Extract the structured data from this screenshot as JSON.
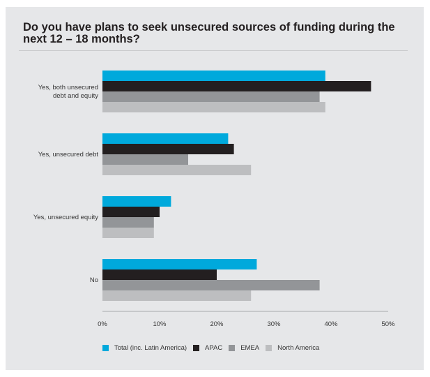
{
  "chart_data": {
    "type": "bar",
    "orientation": "horizontal",
    "title": "Do you have plans to seek unsecured sources of funding during the next 12 – 18 months?",
    "categories": [
      [
        "Yes, both unsecured",
        "debt and equity"
      ],
      [
        "Yes, unsecured debt"
      ],
      [
        "Yes, unsecured equity"
      ],
      [
        "No"
      ]
    ],
    "series": [
      {
        "name": "Total (inc. Latin America)",
        "color": "#00a9dc",
        "values": [
          39,
          22,
          12,
          27
        ]
      },
      {
        "name": "APAC",
        "color": "#231f20",
        "values": [
          47,
          23,
          10,
          20
        ]
      },
      {
        "name": "EMEA",
        "color": "#939598",
        "values": [
          38,
          15,
          9,
          38
        ]
      },
      {
        "name": "North America",
        "color": "#bdbec0",
        "values": [
          39,
          26,
          9,
          26
        ]
      }
    ],
    "xlim": [
      0,
      50
    ],
    "xticks": [
      "0%",
      "10%",
      "20%",
      "30%",
      "40%",
      "50%"
    ],
    "xlabel": "",
    "ylabel": "",
    "grid": false,
    "legend_position": "bottom"
  }
}
